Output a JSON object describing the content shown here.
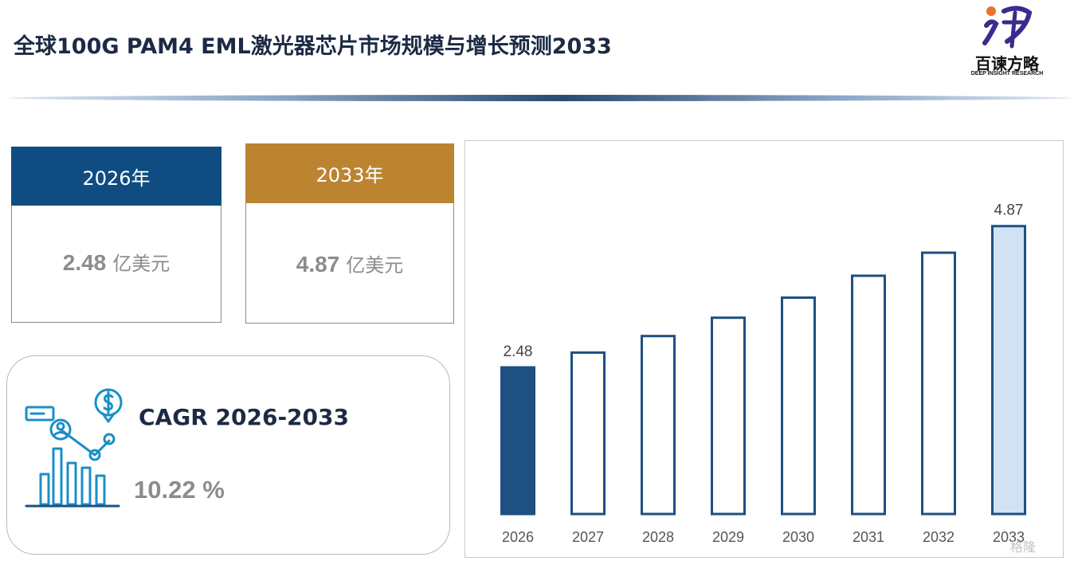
{
  "header": {
    "title": "全球100G PAM4 EML激光器芯片市场规模与增长预测2033",
    "logo_text": "百谏方略",
    "logo_subtext": "DEEP INSIGHT RESEARCH"
  },
  "cards": [
    {
      "year_label": "2026年",
      "value": "2.48",
      "unit": "亿美元",
      "head_color": "#0f4c81"
    },
    {
      "year_label": "2033年",
      "value": "4.87",
      "unit": "亿美元",
      "head_color": "#bc8431"
    }
  ],
  "cagr": {
    "label": "CAGR 2026-2033",
    "value": "10.22 %"
  },
  "colors": {
    "primary": "#1e5082",
    "highlight_fill": "#d3e2f3",
    "gold": "#bc8431",
    "icon_blue": "#1a8fc8",
    "axis_text": "#555555"
  },
  "chart_data": {
    "type": "bar",
    "categories": [
      "2026",
      "2027",
      "2028",
      "2029",
      "2030",
      "2031",
      "2032",
      "2033"
    ],
    "values": [
      2.48,
      2.73,
      3.01,
      3.32,
      3.66,
      4.03,
      4.42,
      4.87
    ],
    "data_labels": {
      "2026": "2.48",
      "2033": "4.87"
    },
    "title": "",
    "xlabel": "",
    "ylabel": "",
    "ylim": [
      0,
      5.5
    ],
    "grid": false,
    "legend": "none",
    "watermark": "格隆"
  }
}
